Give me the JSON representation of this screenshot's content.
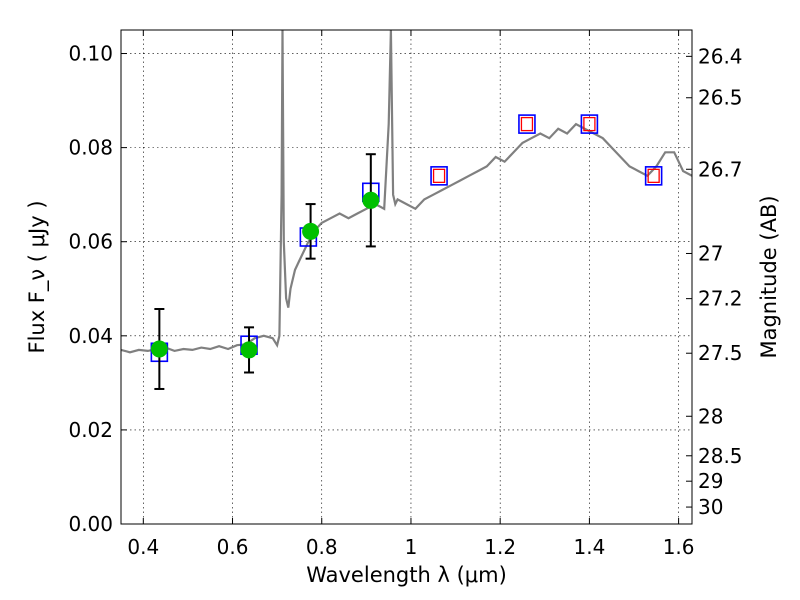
{
  "chart_data": {
    "type": "scatter",
    "xlabel": "Wavelength  λ (μm)",
    "ylabel": "Flux  F_ν  ( μJy )",
    "ylabel2": "Magnitude (AB)",
    "xlim": [
      0.35,
      1.63
    ],
    "ylim": [
      0.0,
      0.105
    ],
    "grid": true,
    "x_ticks": [
      0.4,
      0.6,
      0.8,
      1.0,
      1.2,
      1.4,
      1.6
    ],
    "x_tick_labels": [
      "0.4",
      "0.6",
      "0.8",
      "1",
      "1.2",
      "1.4",
      "1.6"
    ],
    "y_ticks": [
      0.0,
      0.02,
      0.04,
      0.06,
      0.08,
      0.1
    ],
    "y_tick_labels": [
      "0.00",
      "0.02",
      "0.04",
      "0.06",
      "0.08",
      "0.10"
    ],
    "mag_ticks": [
      {
        "label": "26.4",
        "flux": 0.0994
      },
      {
        "label": "26.5",
        "flux": 0.0906
      },
      {
        "label": "26.7",
        "flux": 0.0754
      },
      {
        "label": "27",
        "flux": 0.0575
      },
      {
        "label": "27.2",
        "flux": 0.0479
      },
      {
        "label": "27.5",
        "flux": 0.0363
      },
      {
        "label": "28",
        "flux": 0.0229
      },
      {
        "label": "28.5",
        "flux": 0.0145
      },
      {
        "label": "29",
        "flux": 0.0091
      },
      {
        "label": "30",
        "flux": 0.0036
      }
    ],
    "series": [
      {
        "style": "line",
        "color": "#808080",
        "x": [
          0.35,
          0.37,
          0.39,
          0.41,
          0.43,
          0.45,
          0.47,
          0.49,
          0.51,
          0.53,
          0.55,
          0.57,
          0.59,
          0.61,
          0.63,
          0.65,
          0.67,
          0.69,
          0.7,
          0.705,
          0.71,
          0.712,
          0.715,
          0.72,
          0.725,
          0.73,
          0.74,
          0.75,
          0.76,
          0.77,
          0.78,
          0.79,
          0.8,
          0.82,
          0.84,
          0.86,
          0.88,
          0.9,
          0.92,
          0.94,
          0.95,
          0.955,
          0.96,
          0.965,
          0.97,
          0.99,
          1.01,
          1.03,
          1.05,
          1.07,
          1.09,
          1.11,
          1.13,
          1.15,
          1.17,
          1.19,
          1.21,
          1.23,
          1.25,
          1.27,
          1.29,
          1.31,
          1.33,
          1.35,
          1.37,
          1.39,
          1.41,
          1.43,
          1.45,
          1.47,
          1.49,
          1.51,
          1.53,
          1.55,
          1.57,
          1.59,
          1.61,
          1.63
        ],
        "y": [
          0.037,
          0.0365,
          0.037,
          0.0368,
          0.0372,
          0.0375,
          0.0368,
          0.0372,
          0.037,
          0.0375,
          0.0372,
          0.0378,
          0.0372,
          0.038,
          0.0382,
          0.0395,
          0.04,
          0.0395,
          0.038,
          0.04,
          0.07,
          0.105,
          0.06,
          0.048,
          0.046,
          0.05,
          0.054,
          0.056,
          0.058,
          0.06,
          0.061,
          0.063,
          0.064,
          0.065,
          0.066,
          0.065,
          0.066,
          0.067,
          0.068,
          0.067,
          0.085,
          0.105,
          0.07,
          0.068,
          0.069,
          0.068,
          0.067,
          0.069,
          0.07,
          0.071,
          0.072,
          0.073,
          0.074,
          0.075,
          0.076,
          0.078,
          0.077,
          0.079,
          0.081,
          0.082,
          0.083,
          0.082,
          0.084,
          0.083,
          0.085,
          0.084,
          0.083,
          0.082,
          0.08,
          0.078,
          0.076,
          0.075,
          0.074,
          0.076,
          0.079,
          0.079,
          0.075,
          0.074
        ]
      },
      {
        "style": "open-square",
        "color": "#0000ff",
        "x": [
          0.436,
          0.637,
          0.77,
          0.91,
          1.063,
          1.26,
          1.4,
          1.544
        ],
        "y": [
          0.0365,
          0.038,
          0.061,
          0.0705,
          0.074,
          0.085,
          0.085,
          0.074
        ]
      },
      {
        "style": "open-square-small",
        "color": "#ff0000",
        "x": [
          1.063,
          1.26,
          1.4,
          1.544
        ],
        "y": [
          0.074,
          0.085,
          0.085,
          0.074
        ]
      },
      {
        "style": "filled-circle",
        "color": "#00c000",
        "x": [
          0.436,
          0.637,
          0.775,
          0.91
        ],
        "y": [
          0.0372,
          0.037,
          0.0622,
          0.0688
        ],
        "yerr": [
          0.0085,
          0.0048,
          0.0058,
          0.0098
        ]
      }
    ]
  }
}
